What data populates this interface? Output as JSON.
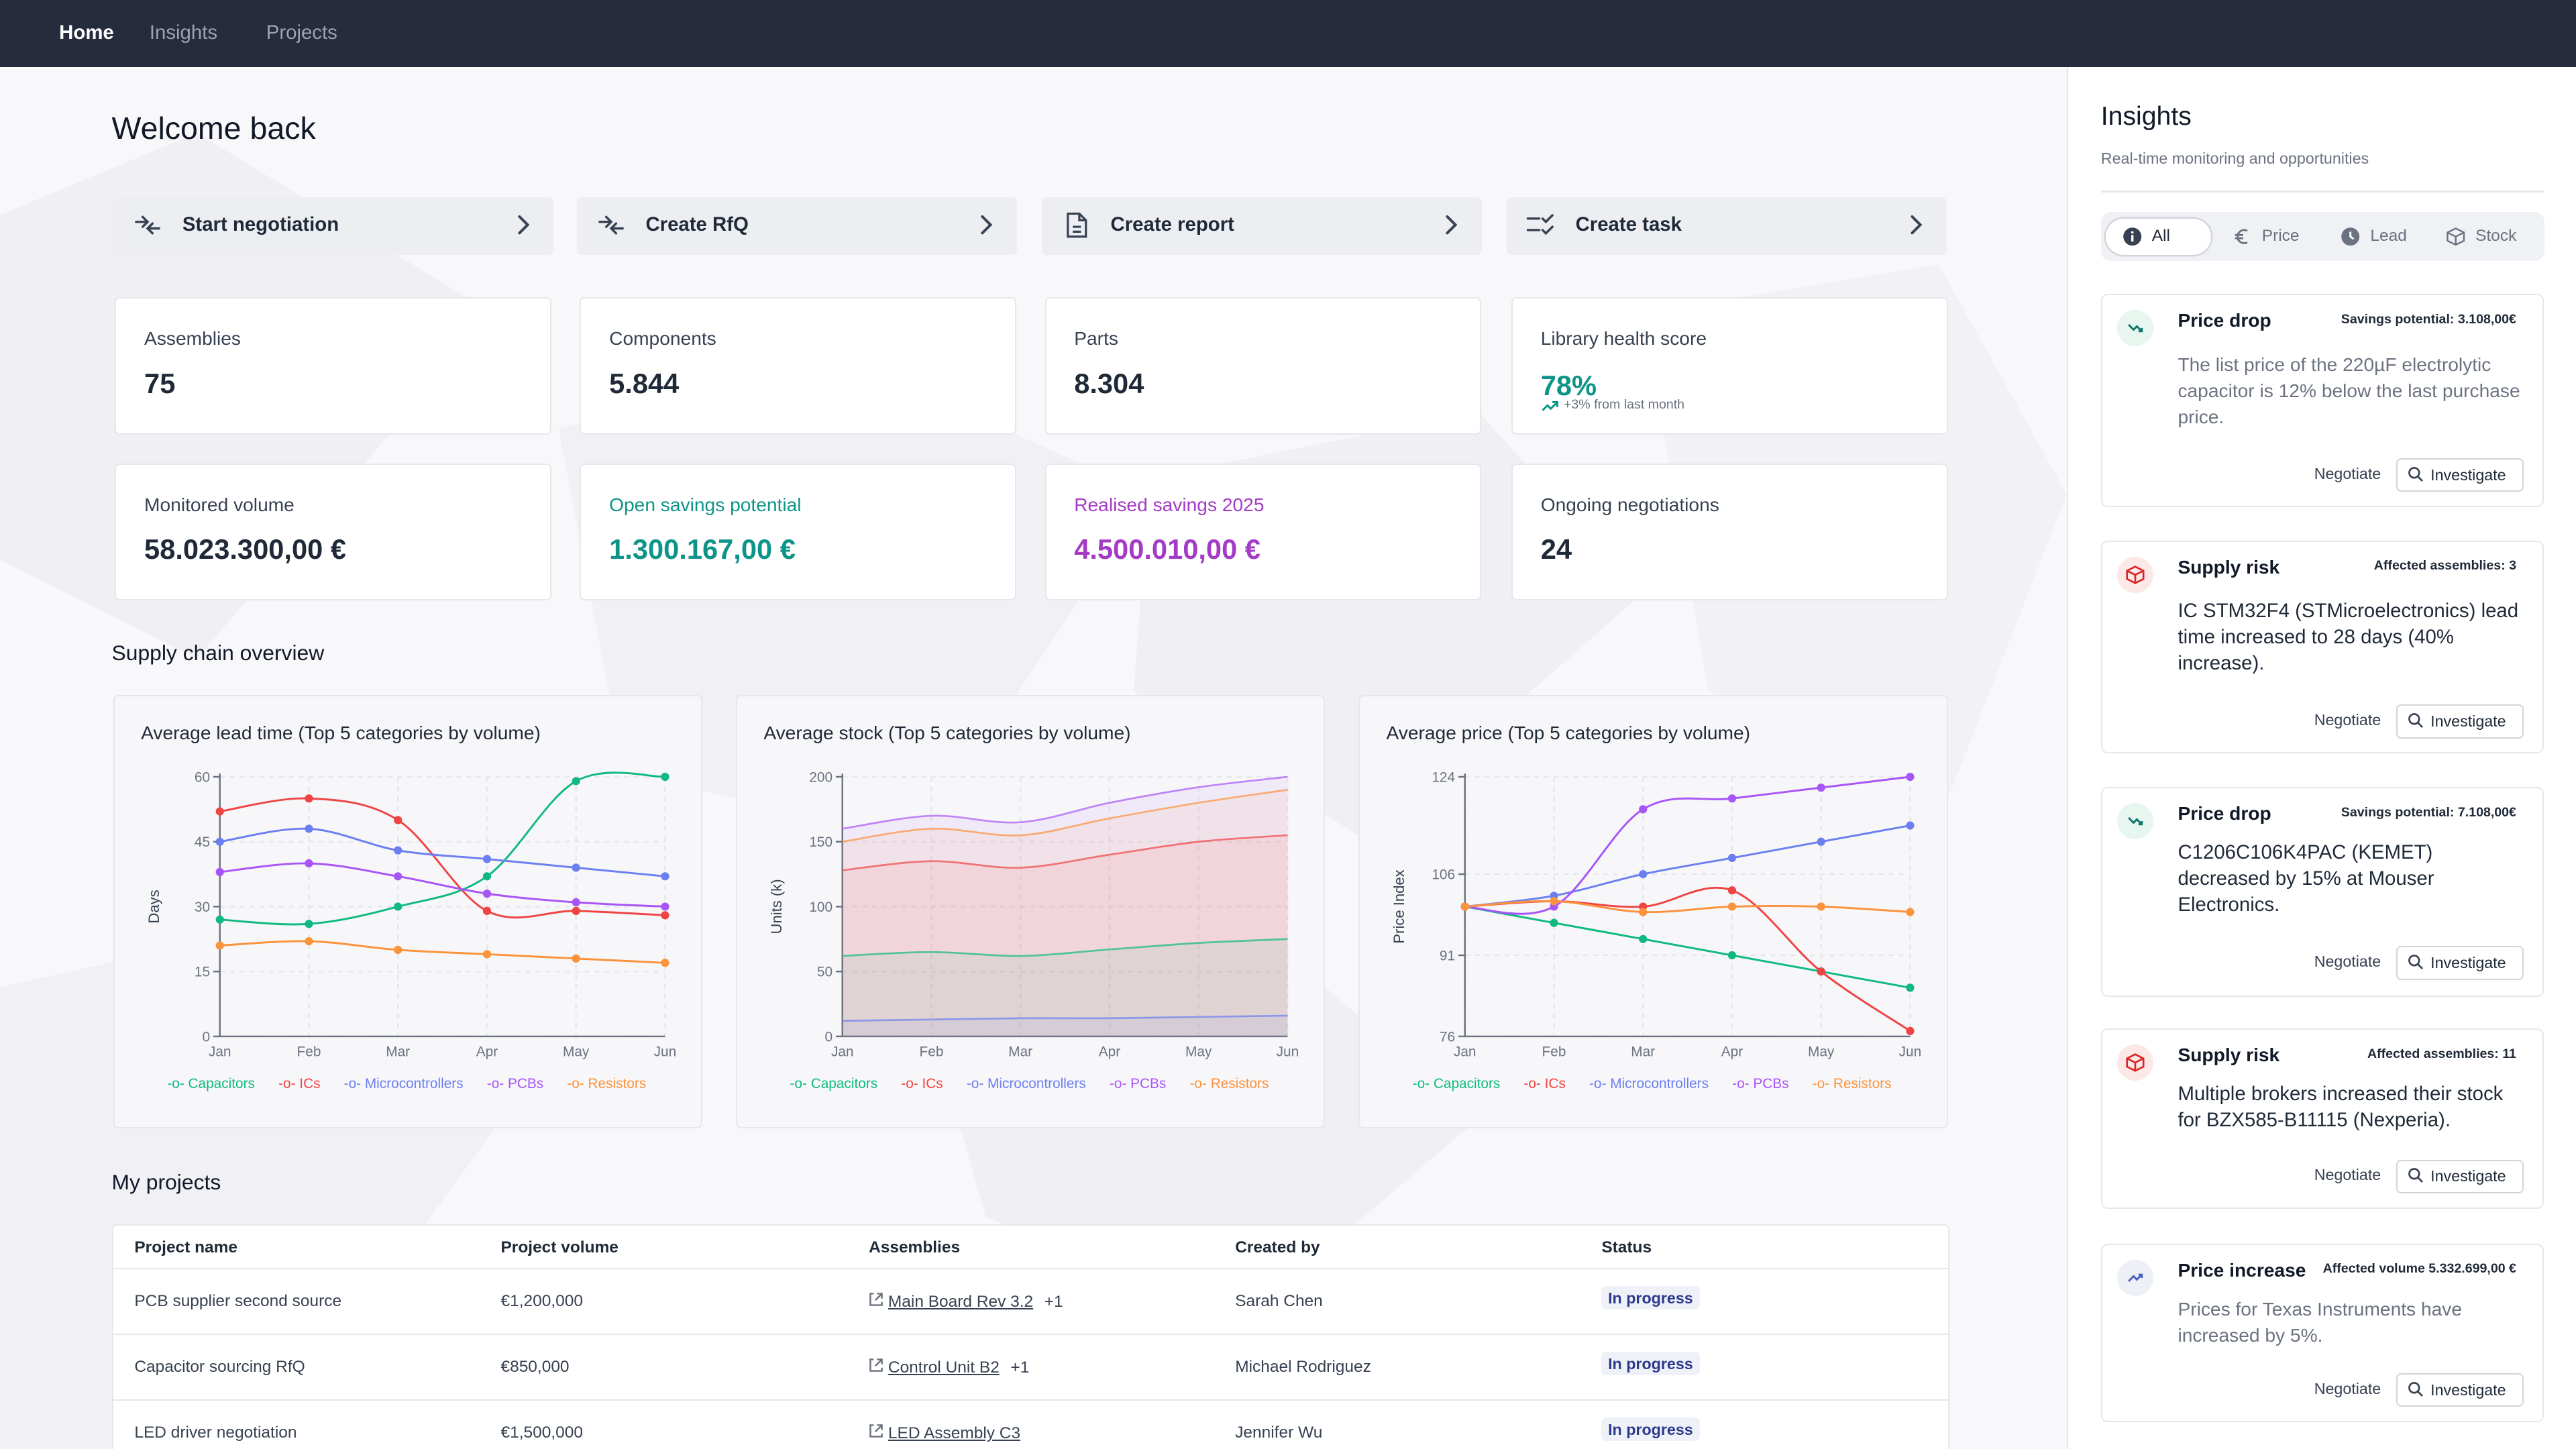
{
  "nav": {
    "home": "Home",
    "insights": "Insights",
    "projects": "Projects"
  },
  "welcome": "Welcome back",
  "actions": [
    {
      "label": "Start negotiation",
      "icon": "negotiation-arrows-icon"
    },
    {
      "label": "Create RfQ",
      "icon": "rfq-arrows-icon"
    },
    {
      "label": "Create report",
      "icon": "document-icon"
    },
    {
      "label": "Create task",
      "icon": "checklist-icon"
    }
  ],
  "stats": {
    "assemblies": {
      "label": "Assemblies",
      "value": "75"
    },
    "components": {
      "label": "Components",
      "value": "5.844"
    },
    "parts": {
      "label": "Parts",
      "value": "8.304"
    },
    "health": {
      "label": "Library health score",
      "value": "78%",
      "change": "+3% from last month"
    },
    "monitored": {
      "label": "Monitored volume",
      "value": "58.023.300,00 €"
    },
    "open_savings": {
      "label": "Open savings potential",
      "value": "1.300.167,00 €"
    },
    "realised": {
      "label": "Realised savings 2025",
      "value": "4.500.010,00 €"
    },
    "negotiations": {
      "label": "Ongoing negotiations",
      "value": "24"
    }
  },
  "colors": {
    "capacitors": "#10b981",
    "ics": "#ef4444",
    "microcontrollers": "#6b7ff0",
    "pcbs": "#a855f7",
    "resistors": "#fb923c",
    "teal": "#0d9488",
    "purple": "#a33bc6"
  },
  "supply_title": "Supply chain overview",
  "chart_data": [
    {
      "type": "line",
      "title": "Average lead time (Top 5 categories by volume)",
      "ylabel": "Days",
      "xlabel": "",
      "categories": [
        "Jan",
        "Feb",
        "Mar",
        "Apr",
        "May",
        "Jun"
      ],
      "yticks": [
        0,
        15,
        30,
        45,
        60
      ],
      "ylim": [
        0,
        60
      ],
      "series": [
        {
          "name": "Capacitors",
          "values": [
            27,
            26,
            30,
            37,
            59,
            60
          ]
        },
        {
          "name": "ICs",
          "values": [
            52,
            55,
            50,
            29,
            29,
            28
          ]
        },
        {
          "name": "Microcontrollers",
          "values": [
            45,
            48,
            43,
            41,
            39,
            37
          ]
        },
        {
          "name": "PCBs",
          "values": [
            38,
            40,
            37,
            33,
            31,
            30
          ]
        },
        {
          "name": "Resistors",
          "values": [
            21,
            22,
            20,
            19,
            18,
            17
          ]
        }
      ]
    },
    {
      "type": "area",
      "title": "Average stock (Top 5 categories by volume)",
      "ylabel": "Units (k)",
      "xlabel": "",
      "categories": [
        "Jan",
        "Feb",
        "Mar",
        "Apr",
        "May",
        "Jun"
      ],
      "yticks": [
        0,
        50,
        100,
        150,
        200
      ],
      "ylim": [
        0,
        200
      ],
      "series": [
        {
          "name": "Capacitors",
          "values": [
            62,
            65,
            62,
            67,
            72,
            75
          ]
        },
        {
          "name": "ICs",
          "values": [
            128,
            135,
            130,
            140,
            150,
            155
          ]
        },
        {
          "name": "Microcontrollers",
          "values": [
            12,
            13,
            14,
            14,
            15,
            16
          ]
        },
        {
          "name": "PCBs",
          "values": [
            160,
            170,
            165,
            180,
            192,
            200
          ]
        },
        {
          "name": "Resistors",
          "values": [
            150,
            160,
            155,
            168,
            180,
            190
          ]
        }
      ]
    },
    {
      "type": "line",
      "title": "Average price (Top 5 categories by volume)",
      "ylabel": "Price Index",
      "xlabel": "",
      "categories": [
        "Jan",
        "Feb",
        "Mar",
        "Apr",
        "May",
        "Jun"
      ],
      "yticks": [
        76,
        91,
        106,
        124
      ],
      "ylim": [
        76,
        124
      ],
      "series": [
        {
          "name": "Capacitors",
          "values": [
            100,
            97,
            94,
            91,
            88,
            85
          ]
        },
        {
          "name": "ICs",
          "values": [
            100,
            101,
            100,
            103,
            88,
            77
          ]
        },
        {
          "name": "Microcontrollers",
          "values": [
            100,
            102,
            106,
            109,
            112,
            115
          ]
        },
        {
          "name": "PCBs",
          "values": [
            100,
            100,
            118,
            120,
            122,
            124
          ]
        },
        {
          "name": "Resistors",
          "values": [
            100,
            101,
            99,
            100,
            100,
            99
          ]
        }
      ]
    }
  ],
  "projects_title": "My projects",
  "table": {
    "headers": [
      "Project name",
      "Project volume",
      "Assemblies",
      "Created by",
      "Status"
    ],
    "rows": [
      {
        "name": "PCB supplier second source",
        "volume": "€1,200,000",
        "assembly": "Main Board Rev 3.2",
        "extra": "+1",
        "creator": "Sarah Chen",
        "status": "In progress"
      },
      {
        "name": "Capacitor sourcing RfQ",
        "volume": "€850,000",
        "assembly": "Control Unit B2",
        "extra": "+1",
        "creator": "Michael Rodriguez",
        "status": "In progress"
      },
      {
        "name": "LED driver negotiation",
        "volume": "€1,500,000",
        "assembly": "LED Assembly C3",
        "extra": "",
        "creator": "Jennifer Wu",
        "status": "In progress"
      }
    ]
  },
  "sidebar": {
    "title": "Insights",
    "subtitle": "Real-time monitoring and opportunities",
    "filters": [
      "All",
      "Price",
      "Lead",
      "Stock"
    ],
    "negotiate": "Negotiate",
    "investigate": "Investigate",
    "items": [
      {
        "title": "Price drop",
        "badge": "Savings potential: 3.108,00€",
        "body": "The list price of the 220µF electrolytic capacitor is 12% below the last purchase price.",
        "icon": "trending-down-icon"
      },
      {
        "title": "Supply risk",
        "badge": "Affected assemblies: 3",
        "body": "IC STM32F4 (STMicroelectronics) lead time increased to 28 days (40% increase).",
        "icon": "package-icon"
      },
      {
        "title": "Price drop",
        "badge": "Savings potential: 7.108,00€",
        "body": "C1206C106K4PAC (KEMET) decreased by 15% at Mouser Electronics.",
        "icon": "trending-down-icon"
      },
      {
        "title": "Supply risk",
        "badge": "Affected assemblies: 11",
        "body": "Multiple brokers increased their stock for BZX585-B11115 (Nexperia).",
        "icon": "package-icon"
      },
      {
        "title": "Price increase",
        "badge": "Affected volume 5.332.699,00 €",
        "body": "Prices for Texas Instruments have increased by 5%.",
        "icon": "trending-up-icon"
      }
    ]
  }
}
